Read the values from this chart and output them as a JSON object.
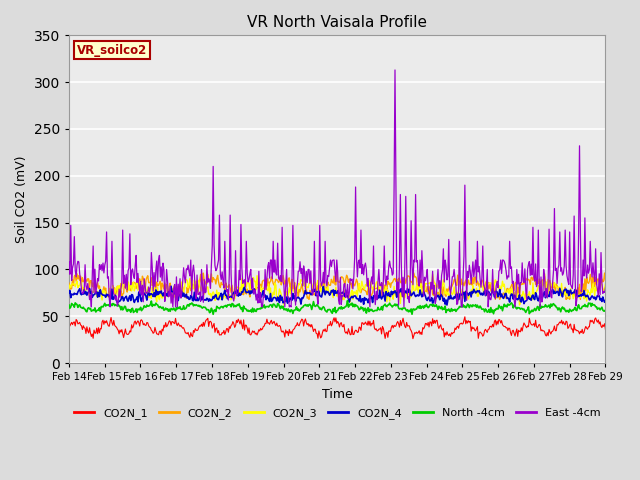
{
  "title": "VR North Vaisala Profile",
  "xlabel": "Time",
  "ylabel": "Soil CO2 (mV)",
  "ylim": [
    0,
    350
  ],
  "annotation_text": "VR_soilco2",
  "annotation_color": "#AA0000",
  "annotation_bg": "#FFFFCC",
  "tick_labels": [
    "Feb 14",
    "Feb 15",
    "Feb 16",
    "Feb 17",
    "Feb 18",
    "Feb 19",
    "Feb 20",
    "Feb 21",
    "Feb 22",
    "Feb 23",
    "Feb 24",
    "Feb 25",
    "Feb 26",
    "Feb 27",
    "Feb 28",
    "Feb 29"
  ],
  "series_colors": {
    "CO2N_1": "#FF0000",
    "CO2N_2": "#FFA500",
    "CO2N_3": "#FFFF00",
    "CO2N_4": "#0000CC",
    "North -4cm": "#00CC00",
    "East -4cm": "#9900CC"
  },
  "legend_order": [
    "CO2N_1",
    "CO2N_2",
    "CO2N_3",
    "CO2N_4",
    "North -4cm",
    "East -4cm"
  ],
  "background_color": "#DCDCDC",
  "plot_bg": "#EBEBEB",
  "grid_color": "white",
  "figsize": [
    6.4,
    4.8
  ],
  "dpi": 100
}
